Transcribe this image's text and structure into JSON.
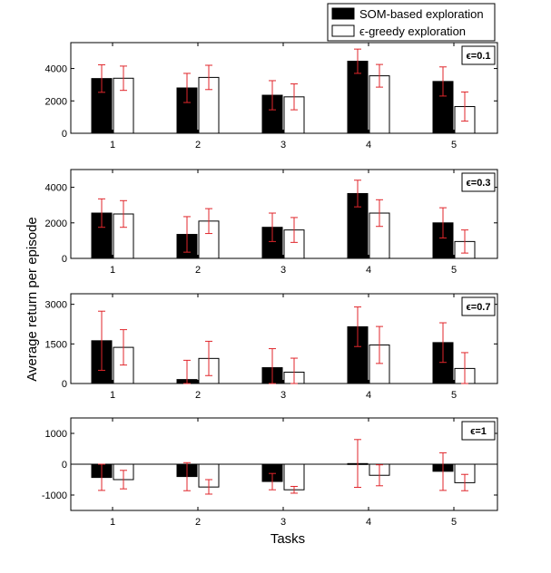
{
  "chart_data": {
    "type": "bar",
    "xlabel": "Tasks",
    "ylabel": "Average return per episode",
    "legend": {
      "placement": "top-right",
      "entries": [
        {
          "name": "SOM-based exploration",
          "color": "#000000"
        },
        {
          "name": "ϵ-greedy exploration",
          "color": "#ffffff"
        }
      ]
    },
    "error_bar_color": "#e0262b",
    "panels": [
      {
        "annotation": "ϵ=0.1",
        "categories": [
          "1",
          "2",
          "3",
          "4",
          "5"
        ],
        "ylim": [
          0,
          5600
        ],
        "yticks": [
          0,
          2000,
          4000
        ],
        "ytick_labels": [
          "0",
          "2000",
          "4000"
        ],
        "series": [
          {
            "name": "SOM-based exploration",
            "values": [
              3380,
              2800,
              2350,
              4450,
              3200
            ],
            "err_low": [
              2530,
              1900,
              1450,
              3700,
              2300
            ],
            "err_high": [
              4230,
              3700,
              3250,
              5200,
              4100
            ]
          },
          {
            "name": "ϵ-greedy exploration",
            "values": [
              3400,
              3450,
              2250,
              3550,
              1650
            ],
            "err_low": [
              2650,
              2700,
              1450,
              2850,
              750
            ],
            "err_high": [
              4150,
              4200,
              3050,
              4250,
              2550
            ]
          }
        ]
      },
      {
        "annotation": "ϵ=0.3",
        "categories": [
          "1",
          "2",
          "3",
          "4",
          "5"
        ],
        "ylim": [
          0,
          5000
        ],
        "yticks": [
          0,
          2000,
          4000
        ],
        "ytick_labels": [
          "0",
          "2000",
          "4000"
        ],
        "series": [
          {
            "name": "SOM-based exploration",
            "values": [
              2550,
              1350,
              1750,
              3650,
              2000
            ],
            "err_low": [
              1750,
              350,
              950,
              2900,
              1150
            ],
            "err_high": [
              3350,
              2350,
              2550,
              4400,
              2850
            ]
          },
          {
            "name": "ϵ-greedy exploration",
            "values": [
              2500,
              2100,
              1600,
              2550,
              950
            ],
            "err_low": [
              1750,
              1400,
              900,
              1800,
              300
            ],
            "err_high": [
              3250,
              2800,
              2300,
              3300,
              1600
            ]
          }
        ]
      },
      {
        "annotation": "ϵ=0.7",
        "categories": [
          "1",
          "2",
          "3",
          "4",
          "5"
        ],
        "ylim": [
          0,
          3400
        ],
        "yticks": [
          0,
          1500,
          3000
        ],
        "ytick_labels": [
          "0",
          "1500",
          "3000"
        ],
        "series": [
          {
            "name": "SOM-based exploration",
            "values": [
              1620,
              150,
              600,
              2150,
              1550
            ],
            "err_low": [
              500,
              0,
              0,
              1400,
              800
            ],
            "err_high": [
              2740,
              880,
              1320,
              2900,
              2300
            ]
          },
          {
            "name": "ϵ-greedy exploration",
            "values": [
              1370,
              950,
              430,
              1460,
              570
            ],
            "err_low": [
              700,
              300,
              0,
              760,
              0
            ],
            "err_high": [
              2040,
              1600,
              960,
              2160,
              1170
            ]
          }
        ]
      },
      {
        "annotation": "ϵ=1",
        "categories": [
          "1",
          "2",
          "3",
          "4",
          "5"
        ],
        "ylim": [
          -1500,
          1500
        ],
        "yticks": [
          -1000,
          0,
          1000
        ],
        "ytick_labels": [
          "-1000",
          "0",
          "1000"
        ],
        "series": [
          {
            "name": "SOM-based exploration",
            "values": [
              -430,
              -400,
              -560,
              20,
              -230
            ],
            "err_low": [
              -850,
              -860,
              -830,
              -750,
              -850
            ],
            "err_high": [
              0,
              50,
              -300,
              800,
              370
            ]
          },
          {
            "name": "ϵ-greedy exploration",
            "values": [
              -500,
              -740,
              -830,
              -360,
              -600
            ],
            "err_low": [
              -800,
              -970,
              -940,
              -700,
              -860
            ],
            "err_high": [
              -200,
              -500,
              -720,
              -20,
              -330
            ]
          }
        ]
      }
    ]
  }
}
